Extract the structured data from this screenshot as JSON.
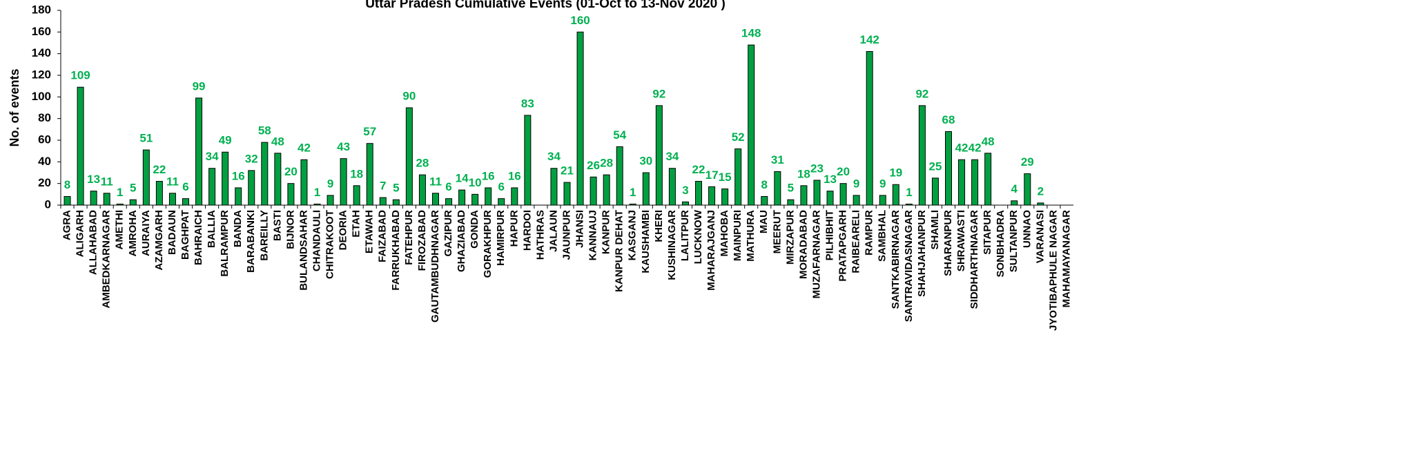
{
  "chart_data": {
    "type": "bar",
    "title": "Uttar Pradesh Cumulative Events (01-Oct to 13-Nov 2020 )",
    "y_label": "No. of events",
    "categories": [
      "AGRA",
      "ALIGARH",
      "ALLAHABAD",
      "AMBEDKARNAGAR",
      "AMETHI",
      "AMROHA",
      "AURAIYA",
      "AZAMGARH",
      "BADAUN",
      "BAGHPAT",
      "BAHRAICH",
      "BALLIA",
      "BALRAMPUR",
      "BANDA",
      "BARABANKI",
      "BAREILLY",
      "BASTI",
      "BIJNOR",
      "BULANDSAHAR",
      "CHANDAULI",
      "CHITRAKOOT",
      "DEORIA",
      "ETAH",
      "ETAWAH",
      "FAIZABAD",
      "FARRUKHABAD",
      "FATEHPUR",
      "FIROZABAD",
      "GAUTAMBUDHNAGAR",
      "GAZIPUR",
      "GHAZIABAD",
      "GONDA",
      "GORAKHPUR",
      "HAMIRPUR",
      "HAPUR",
      "HARDOI",
      "HATHRAS",
      "JALAUN",
      "JAUNPUR",
      "JHANSI",
      "KANNAUJ",
      "KANPUR",
      "KANPUR DEHAT",
      "KASGANJ",
      "KAUSHAMBI",
      "KHERI",
      "KUSHINAGAR",
      "LALITPUR",
      "LUCKNOW",
      "MAHARAJGANJ",
      "MAHOBA",
      "MAINPURI",
      "MATHURA",
      "MAU",
      "MEERUT",
      "MIRZAPUR",
      "MORADABAD",
      "MUZAFARNAGAR",
      "PILHIBHIT",
      "PRATAPGARH",
      "RAIBEARELI",
      "RAMPUR",
      "SAMBHAL",
      "SANTKABIRNAGAR",
      "SANTRAVIDASNAGAR",
      "SHAHJAHANPUR",
      "SHAMLI",
      "SHARANPUR",
      "SHRAWASTI",
      "SIDDHARTHNAGAR",
      "SITAPUR",
      "SONBHADRA",
      "SULTANPUR",
      "UNNAO",
      "VARANASI",
      "JYOTIBAPHULE NAGAR",
      "MAHAMAYANAGAR"
    ],
    "values": [
      8,
      109,
      13,
      11,
      1,
      5,
      51,
      22,
      11,
      6,
      99,
      34,
      49,
      16,
      32,
      58,
      48,
      20,
      42,
      1,
      9,
      43,
      18,
      57,
      7,
      5,
      90,
      28,
      11,
      6,
      14,
      10,
      16,
      6,
      16,
      83,
      null,
      34,
      21,
      160,
      26,
      28,
      54,
      1,
      30,
      92,
      34,
      3,
      22,
      17,
      15,
      52,
      148,
      8,
      31,
      5,
      18,
      23,
      13,
      20,
      9,
      142,
      9,
      19,
      1,
      92,
      25,
      68,
      42,
      42,
      48,
      null,
      4,
      29,
      2,
      null,
      null
    ],
    "color": "#00a041",
    "label_color": "#00b050",
    "ylim": [
      0,
      180
    ],
    "yticks": [
      0,
      20,
      40,
      60,
      80,
      100,
      120,
      140,
      160,
      180
    ]
  }
}
